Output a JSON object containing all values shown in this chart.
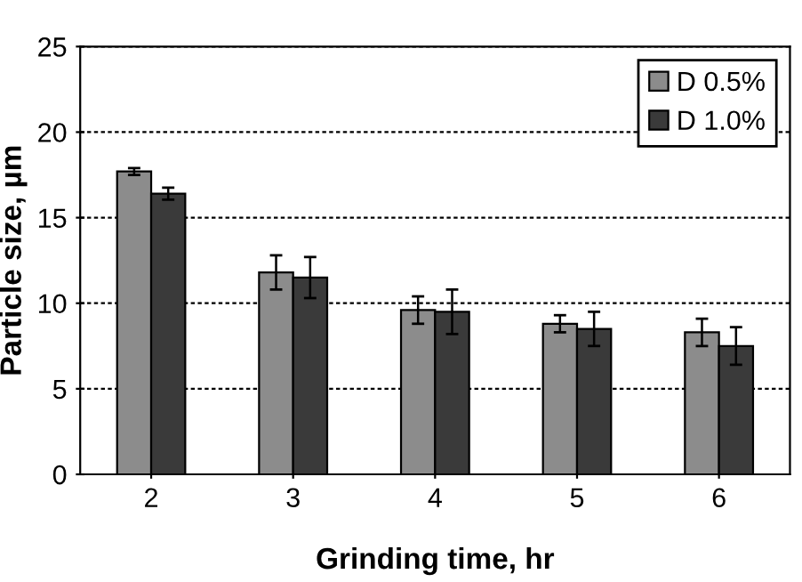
{
  "chart_data": {
    "type": "bar",
    "xlabel": "Grinding time, hr",
    "ylabel": "Particle size, µm",
    "categories": [
      "2",
      "3",
      "4",
      "5",
      "6"
    ],
    "series": [
      {
        "name": "D 0.5%",
        "color": "#8c8c8c",
        "values": [
          17.7,
          11.8,
          9.6,
          8.8,
          8.3
        ],
        "errors": [
          0.2,
          1.0,
          0.8,
          0.5,
          0.8
        ]
      },
      {
        "name": "D 1.0%",
        "color": "#3a3a3a",
        "values": [
          16.4,
          11.5,
          9.5,
          8.5,
          7.5
        ],
        "errors": [
          0.35,
          1.2,
          1.3,
          1.0,
          1.1
        ]
      }
    ],
    "ylim": [
      0,
      25
    ],
    "yticks": [
      0,
      5,
      10,
      15,
      20,
      25
    ],
    "grid": "y",
    "legend": "top right"
  }
}
